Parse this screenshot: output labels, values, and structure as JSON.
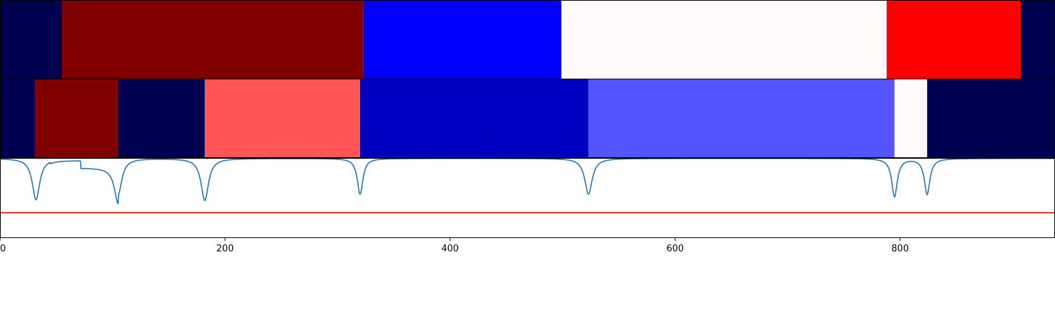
{
  "chart_data": {
    "type": "heatmap",
    "title": "",
    "xlabel": "",
    "ylabel": "",
    "xlim": [
      0,
      937
    ],
    "x_ticks": [
      0,
      200,
      400,
      600,
      800
    ],
    "x_tick_labels": [
      "0",
      "200",
      "400",
      "600",
      "800"
    ],
    "grid": false,
    "legend": "none",
    "segment_rows": [
      {
        "name": "",
        "segments": [
          {
            "start": 0,
            "end": 55,
            "color": "#000050"
          },
          {
            "start": 55,
            "end": 323,
            "color": "#800000"
          },
          {
            "start": 323,
            "end": 499,
            "color": "#0000ff"
          },
          {
            "start": 499,
            "end": 788,
            "color": "#fffafa"
          },
          {
            "start": 788,
            "end": 907,
            "color": "#ff0000"
          },
          {
            "start": 907,
            "end": 937,
            "color": "#000050"
          }
        ]
      },
      {
        "name": "",
        "segments": [
          {
            "start": 0,
            "end": 31,
            "color": "#000050"
          },
          {
            "start": 31,
            "end": 105,
            "color": "#800000"
          },
          {
            "start": 105,
            "end": 182,
            "color": "#000050"
          },
          {
            "start": 182,
            "end": 320,
            "color": "#ff5555"
          },
          {
            "start": 320,
            "end": 523,
            "color": "#0000c0"
          },
          {
            "start": 523,
            "end": 795,
            "color": "#5555ff"
          },
          {
            "start": 795,
            "end": 824,
            "color": "#fffafa"
          },
          {
            "start": 824,
            "end": 937,
            "color": "#000050"
          }
        ]
      }
    ],
    "line_panel": {
      "ylim": [
        0,
        1
      ],
      "threshold": 0.31,
      "threshold_color": "#dd0000",
      "line_color": "#1f77b4",
      "baseline": 0.995,
      "dips": [
        {
          "x": 32,
          "depth": 0.52,
          "width": 4
        },
        {
          "x": 105,
          "depth": 0.45,
          "width": 4
        },
        {
          "x": 182,
          "depth": 0.53,
          "width": 4
        },
        {
          "x": 320,
          "depth": 0.45,
          "width": 3
        },
        {
          "x": 523,
          "depth": 0.45,
          "width": 4
        },
        {
          "x": 795,
          "depth": 0.48,
          "width": 3
        },
        {
          "x": 824,
          "depth": 0.45,
          "width": 3
        }
      ],
      "plateaus": [
        {
          "start": 45,
          "end": 72,
          "level": 0.975
        },
        {
          "start": 72,
          "end": 105,
          "level": 0.88
        },
        {
          "start": 868,
          "end": 905,
          "level": 0.995
        }
      ]
    }
  }
}
